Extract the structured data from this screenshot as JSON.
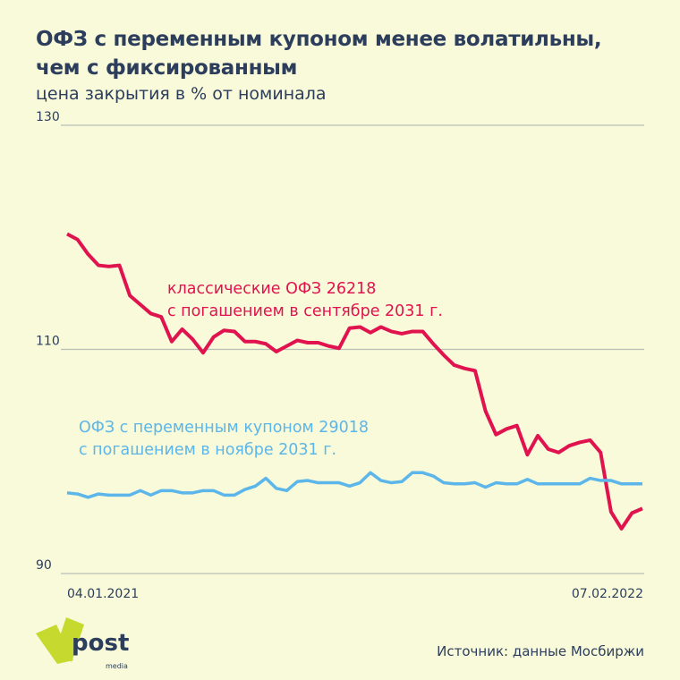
{
  "header": {
    "title_line1": "ОФЗ с переменным купоном менее волатильны,",
    "title_line2": "чем с фиксированным",
    "subtitle": "цена закрытия в % от номинала"
  },
  "chart_data": {
    "type": "line",
    "ylim": [
      90,
      130
    ],
    "yticks": [
      "90",
      "110",
      "130"
    ],
    "x_start_label": "04.01.2021",
    "x_end_label": "07.02.2022",
    "grid": true,
    "series": [
      {
        "name": "классические ОФЗ 26218",
        "label_line1": "классические ОФЗ 26218",
        "label_line2": "с погашением в сентябре 2031 г.",
        "color": "#e0134f",
        "values": [
          120.3,
          119.8,
          118.5,
          117.5,
          117.4,
          117.5,
          114.8,
          114.0,
          113.2,
          112.9,
          110.7,
          111.8,
          110.9,
          109.7,
          111.1,
          111.7,
          111.6,
          110.7,
          110.7,
          110.5,
          109.8,
          110.3,
          110.8,
          110.6,
          110.6,
          110.3,
          110.1,
          111.9,
          112.0,
          111.5,
          112.0,
          111.6,
          111.4,
          111.6,
          111.6,
          110.5,
          109.5,
          108.6,
          108.3,
          108.1,
          104.5,
          102.4,
          102.9,
          103.2,
          100.6,
          102.3,
          101.1,
          100.8,
          101.4,
          101.7,
          101.9,
          100.8,
          95.5,
          94.0,
          95.4,
          95.8
        ]
      },
      {
        "name": "ОФЗ с переменным купоном 29018",
        "label_line1": "ОФЗ с переменным купоном 29018",
        "label_line2": "с погашением в ноябре 2031 г.",
        "color": "#5cb6ea",
        "values": [
          97.2,
          97.1,
          96.8,
          97.1,
          97.0,
          97.0,
          97.0,
          97.4,
          97.0,
          97.4,
          97.4,
          97.2,
          97.2,
          97.4,
          97.4,
          97.0,
          97.0,
          97.5,
          97.8,
          98.5,
          97.6,
          97.4,
          98.2,
          98.3,
          98.1,
          98.1,
          98.1,
          97.8,
          98.1,
          99.0,
          98.3,
          98.1,
          98.2,
          99.0,
          99.0,
          98.7,
          98.1,
          98.0,
          98.0,
          98.1,
          97.7,
          98.1,
          98.0,
          98.0,
          98.4,
          98.0,
          98.0,
          98.0,
          98.0,
          98.0,
          98.5,
          98.3,
          98.3,
          98.0,
          98.0,
          98.0
        ]
      }
    ]
  },
  "footer": {
    "source": "Источник: данные Мосбиржи",
    "logo_text": "post",
    "logo_subtext": "media"
  }
}
